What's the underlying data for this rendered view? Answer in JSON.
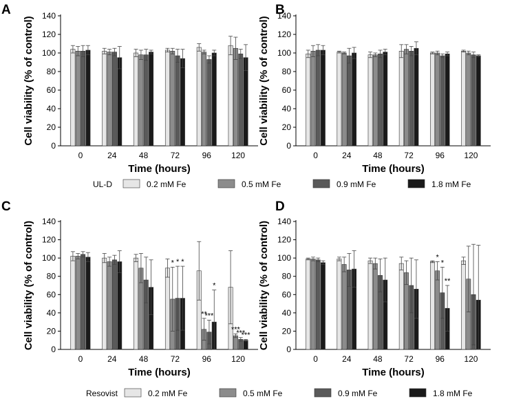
{
  "figure": {
    "legend_groups": [
      {
        "title": "UL-D",
        "entries": [
          "0.2 mM Fe",
          "0.5 mM Fe",
          "0.9 mM Fe",
          "1.8 mM Fe"
        ]
      },
      {
        "title": "Resovist",
        "entries": [
          "0.2 mM Fe",
          "0.5 mM Fe",
          "0.9 mM Fe",
          "1.8 mM Fe"
        ]
      }
    ],
    "series_colors": [
      "#e6e6e6",
      "#8c8c8c",
      "#5a5a5a",
      "#1a1a1a"
    ]
  },
  "chart_data": [
    {
      "panel_label": "A",
      "type": "bar",
      "title": "",
      "xlabel": "Time (hours)",
      "ylabel": "Cell viability (% of control)",
      "ylim": [
        0,
        140
      ],
      "yticks": [
        "0",
        "20",
        "40",
        "60",
        "80",
        "100",
        "120",
        "140"
      ],
      "categories": [
        "0",
        "24",
        "48",
        "72",
        "96",
        "120"
      ],
      "series": [
        {
          "name": "0.2 mM Fe",
          "values": [
            104,
            102,
            100,
            103,
            106,
            108
          ],
          "errors": [
            4,
            3,
            4,
            2,
            4,
            10
          ]
        },
        {
          "name": "0.5 mM Fe",
          "values": [
            102,
            101,
            98,
            102,
            101,
            105
          ],
          "errors": [
            5,
            3,
            5,
            3,
            2,
            12
          ]
        },
        {
          "name": "0.9 mM Fe",
          "values": [
            102,
            101,
            98,
            97,
            93,
            99
          ],
          "errors": [
            6,
            4,
            6,
            7,
            4,
            5
          ]
        },
        {
          "name": "1.8 mM Fe",
          "values": [
            103,
            95,
            101,
            94,
            100,
            95
          ],
          "errors": [
            5,
            12,
            2,
            10,
            3,
            14
          ]
        }
      ],
      "annotations": []
    },
    {
      "panel_label": "B",
      "type": "bar",
      "title": "",
      "xlabel": "Time (hours)",
      "ylabel": "Cell viability (% of control)",
      "ylim": [
        0,
        140
      ],
      "yticks": [
        "0",
        "20",
        "40",
        "60",
        "80",
        "100",
        "120",
        "140"
      ],
      "categories": [
        "0",
        "24",
        "48",
        "72",
        "96",
        "120"
      ],
      "series": [
        {
          "name": "0.2 mM Fe",
          "values": [
            99,
            101,
            98,
            102,
            100,
            102
          ],
          "errors": [
            4,
            1,
            3,
            7,
            1,
            1
          ]
        },
        {
          "name": "0.5 mM Fe",
          "values": [
            102,
            100,
            98,
            104,
            100,
            100
          ],
          "errors": [
            6,
            1,
            2,
            5,
            2,
            2
          ]
        },
        {
          "name": "0.9 mM Fe",
          "values": [
            103,
            97,
            99,
            102,
            97,
            98
          ],
          "errors": [
            6,
            8,
            4,
            5,
            2,
            3
          ]
        },
        {
          "name": "1.8 mM Fe",
          "values": [
            103,
            100,
            101,
            105,
            99,
            97
          ],
          "errors": [
            5,
            6,
            3,
            7,
            2,
            1
          ]
        }
      ],
      "annotations": []
    },
    {
      "panel_label": "C",
      "type": "bar",
      "title": "",
      "xlabel": "Time (hours)",
      "ylabel": "Cell viability (% of control)",
      "ylim": [
        0,
        140
      ],
      "yticks": [
        "0",
        "20",
        "40",
        "60",
        "80",
        "100",
        "120",
        "140"
      ],
      "categories": [
        "0",
        "24",
        "48",
        "72",
        "96",
        "120"
      ],
      "series": [
        {
          "name": "0.2 mM Fe",
          "values": [
            102,
            100,
            100,
            89,
            86,
            68
          ],
          "errors": [
            5,
            5,
            4,
            10,
            32,
            40
          ]
        },
        {
          "name": "0.5 mM Fe",
          "values": [
            102,
            96,
            89,
            55,
            22,
            15
          ],
          "errors": [
            3,
            5,
            16,
            35,
            12,
            2
          ]
        },
        {
          "name": "0.9 mM Fe",
          "values": [
            104,
            98,
            76,
            56,
            19,
            11
          ],
          "errors": [
            3,
            5,
            25,
            35,
            13,
            2
          ]
        },
        {
          "name": "1.8 mM Fe",
          "values": [
            101,
            96,
            68,
            56,
            30,
            10
          ],
          "errors": [
            5,
            12,
            30,
            35,
            35,
            1
          ]
        }
      ],
      "annotations": [
        {
          "category": "72",
          "series": "0.5 mM Fe",
          "text": "*"
        },
        {
          "category": "72",
          "series": "0.9 mM Fe",
          "text": "*"
        },
        {
          "category": "72",
          "series": "1.8 mM Fe",
          "text": "*"
        },
        {
          "category": "96",
          "series": "0.5 mM Fe",
          "text": "**"
        },
        {
          "category": "96",
          "series": "0.9 mM Fe",
          "text": "***"
        },
        {
          "category": "96",
          "series": "1.8 mM Fe",
          "text": "*"
        },
        {
          "category": "120",
          "series": "0.5 mM Fe",
          "text": "***"
        },
        {
          "category": "120",
          "series": "0.9 mM Fe",
          "text": "***"
        },
        {
          "category": "120",
          "series": "1.8 mM Fe",
          "text": "***"
        }
      ]
    },
    {
      "panel_label": "D",
      "type": "bar",
      "title": "",
      "xlabel": "Time (hours)",
      "ylabel": "Cell viability (% of control)",
      "ylim": [
        0,
        140
      ],
      "yticks": [
        "0",
        "20",
        "40",
        "60",
        "80",
        "100",
        "120",
        "140"
      ],
      "categories": [
        "0",
        "24",
        "48",
        "72",
        "96",
        "120"
      ],
      "series": [
        {
          "name": "0.2 mM Fe",
          "values": [
            99,
            99,
            97,
            94,
            96,
            97
          ],
          "errors": [
            1,
            2,
            3,
            7,
            1,
            4
          ]
        },
        {
          "name": "0.5 mM Fe",
          "values": [
            99,
            93,
            94,
            84,
            86,
            77
          ],
          "errors": [
            2,
            8,
            6,
            13,
            10,
            36
          ]
        },
        {
          "name": "0.9 mM Fe",
          "values": [
            98,
            87,
            81,
            70,
            62,
            60
          ],
          "errors": [
            2,
            18,
            18,
            30,
            28,
            55
          ]
        },
        {
          "name": "1.8 mM Fe",
          "values": [
            95,
            88,
            76,
            66,
            45,
            54
          ],
          "errors": [
            2,
            20,
            24,
            32,
            25,
            60
          ]
        }
      ],
      "annotations": [
        {
          "category": "96",
          "series": "0.5 mM Fe",
          "text": "*"
        },
        {
          "category": "96",
          "series": "0.9 mM Fe",
          "text": "*"
        },
        {
          "category": "96",
          "series": "1.8 mM Fe",
          "text": "**"
        }
      ]
    }
  ]
}
